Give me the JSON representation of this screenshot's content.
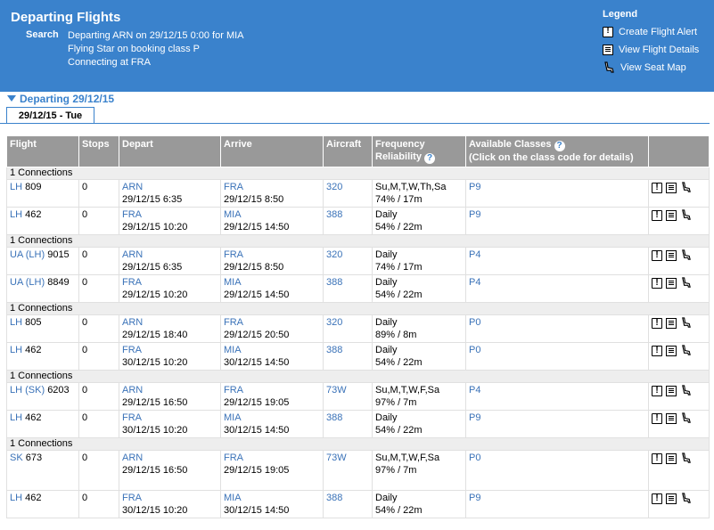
{
  "header": {
    "title": "Departing Flights",
    "search_label": "Search",
    "search_lines": [
      "Departing ARN on 29/12/15 0:00 for MIA",
      "Flying Star on booking class P",
      "Connecting at FRA"
    ]
  },
  "legend": {
    "title": "Legend",
    "items": [
      "Create Flight Alert",
      "View Flight Details",
      "View Seat Map"
    ]
  },
  "departing_label": "Departing 29/12/15",
  "tab_label": "29/12/15 - Tue",
  "columns": {
    "flight": "Flight",
    "stops": "Stops",
    "depart": "Depart",
    "arrive": "Arrive",
    "aircraft": "Aircraft",
    "frequency_1": "Frequency",
    "frequency_2": "Reliability",
    "classes_1": "Available Classes",
    "classes_2": "(Click on the class code for details)"
  },
  "connection_label": "1 Connections",
  "groups": [
    [
      {
        "car": "LH",
        "op": "",
        "num": "809",
        "stops": "0",
        "dep_ap": "ARN",
        "dep_time": "29/12/15 6:35",
        "arr_ap": "FRA",
        "arr_time": "29/12/15 8:50",
        "aircraft": "320",
        "freq": "Su,M,T,W,Th,Sa",
        "rel": "74% / 17m",
        "cls": "P9"
      },
      {
        "car": "LH",
        "op": "",
        "num": "462",
        "stops": "0",
        "dep_ap": "FRA",
        "dep_time": "29/12/15 10:20",
        "arr_ap": "MIA",
        "arr_time": "29/12/15 14:50",
        "aircraft": "388",
        "freq": "Daily",
        "rel": "54% / 22m",
        "cls": "P9"
      }
    ],
    [
      {
        "car": "UA",
        "op": "(LH)",
        "num": "9015",
        "stops": "0",
        "dep_ap": "ARN",
        "dep_time": "29/12/15 6:35",
        "arr_ap": "FRA",
        "arr_time": "29/12/15 8:50",
        "aircraft": "320",
        "freq": "Daily",
        "rel": "74% / 17m",
        "cls": "P4"
      },
      {
        "car": "UA",
        "op": "(LH)",
        "num": "8849",
        "stops": "0",
        "dep_ap": "FRA",
        "dep_time": "29/12/15 10:20",
        "arr_ap": "MIA",
        "arr_time": "29/12/15 14:50",
        "aircraft": "388",
        "freq": "Daily",
        "rel": "54% / 22m",
        "cls": "P4"
      }
    ],
    [
      {
        "car": "LH",
        "op": "",
        "num": "805",
        "stops": "0",
        "dep_ap": "ARN",
        "dep_time": "29/12/15 18:40",
        "arr_ap": "FRA",
        "arr_time": "29/12/15 20:50",
        "aircraft": "320",
        "freq": "Daily",
        "rel": "89% / 8m",
        "cls": "P0"
      },
      {
        "car": "LH",
        "op": "",
        "num": "462",
        "stops": "0",
        "dep_ap": "FRA",
        "dep_time": "30/12/15 10:20",
        "arr_ap": "MIA",
        "arr_time": "30/12/15 14:50",
        "aircraft": "388",
        "freq": "Daily",
        "rel": "54% / 22m",
        "cls": "P0"
      }
    ],
    [
      {
        "car": "LH",
        "op": "(SK)",
        "num": "6203",
        "stops": "0",
        "dep_ap": "ARN",
        "dep_time": "29/12/15 16:50",
        "arr_ap": "FRA",
        "arr_time": "29/12/15 19:05",
        "aircraft": "73W",
        "freq": "Su,M,T,W,F,Sa",
        "rel": "97% / 7m",
        "cls": "P4"
      },
      {
        "car": "LH",
        "op": "",
        "num": "462",
        "stops": "0",
        "dep_ap": "FRA",
        "dep_time": "30/12/15 10:20",
        "arr_ap": "MIA",
        "arr_time": "30/12/15 14:50",
        "aircraft": "388",
        "freq": "Daily",
        "rel": "54% / 22m",
        "cls": "P9"
      }
    ],
    [
      {
        "car": "SK",
        "op": "",
        "num": "673",
        "stops": "0",
        "dep_ap": "ARN",
        "dep_time": "29/12/15 16:50",
        "arr_ap": "FRA",
        "arr_time": "29/12/15 19:05",
        "aircraft": "73W",
        "freq": "Su,M,T,W,F,Sa",
        "rel": "97% / 7m",
        "cls": "P0",
        "tall": true
      },
      {
        "car": "LH",
        "op": "",
        "num": "462",
        "stops": "0",
        "dep_ap": "FRA",
        "dep_time": "30/12/15 10:20",
        "arr_ap": "MIA",
        "arr_time": "30/12/15 14:50",
        "aircraft": "388",
        "freq": "Daily",
        "rel": "54% / 22m",
        "cls": "P9"
      }
    ]
  ]
}
